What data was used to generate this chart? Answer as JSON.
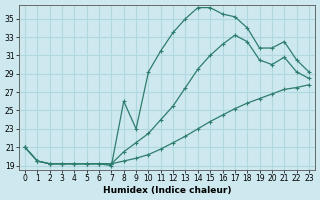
{
  "xlabel": "Humidex (Indice chaleur)",
  "ylabel": "",
  "background_color": "#cde8ee",
  "grid_color": "#b0d8e0",
  "line_color": "#2e7d6e",
  "xlim": [
    -0.5,
    23.5
  ],
  "ylim": [
    18.5,
    36.5
  ],
  "xticks": [
    0,
    1,
    2,
    3,
    4,
    5,
    6,
    7,
    8,
    9,
    10,
    11,
    12,
    13,
    14,
    15,
    16,
    17,
    18,
    19,
    20,
    21,
    22,
    23
  ],
  "yticks": [
    19,
    21,
    23,
    25,
    27,
    29,
    31,
    33,
    35
  ],
  "line1_x": [
    0,
    1,
    2,
    3,
    4,
    5,
    6,
    7,
    8,
    9,
    10,
    11,
    12,
    13,
    14,
    15,
    16,
    17,
    18,
    19,
    20,
    21,
    22,
    23
  ],
  "line1_y": [
    21.0,
    19.5,
    19.2,
    19.2,
    19.2,
    19.2,
    19.2,
    19.2,
    19.5,
    19.8,
    20.2,
    20.8,
    21.5,
    22.2,
    23.0,
    23.8,
    24.5,
    25.2,
    25.8,
    26.3,
    26.8,
    27.3,
    27.5,
    27.8
  ],
  "line2_x": [
    0,
    1,
    2,
    3,
    4,
    5,
    6,
    7,
    8,
    9,
    10,
    11,
    12,
    13,
    14,
    15,
    16,
    17,
    18,
    19,
    20,
    21,
    22,
    23
  ],
  "line2_y": [
    21.0,
    19.5,
    19.2,
    19.2,
    19.2,
    19.2,
    19.2,
    19.2,
    20.5,
    21.5,
    22.5,
    24.0,
    25.5,
    27.5,
    29.5,
    31.0,
    32.2,
    33.2,
    32.5,
    30.5,
    30.0,
    30.8,
    29.2,
    28.5
  ],
  "line3_x": [
    0,
    1,
    2,
    3,
    4,
    5,
    6,
    7,
    8,
    9,
    10,
    11,
    12,
    13,
    14,
    15,
    16,
    17,
    18,
    19,
    20,
    21,
    22,
    23
  ],
  "line3_y": [
    21.0,
    19.5,
    19.2,
    19.2,
    19.2,
    19.2,
    19.2,
    19.0,
    26.0,
    23.0,
    29.2,
    31.5,
    33.5,
    35.0,
    36.2,
    36.2,
    35.5,
    35.2,
    34.0,
    31.8,
    31.8,
    32.5,
    30.5,
    29.2
  ]
}
